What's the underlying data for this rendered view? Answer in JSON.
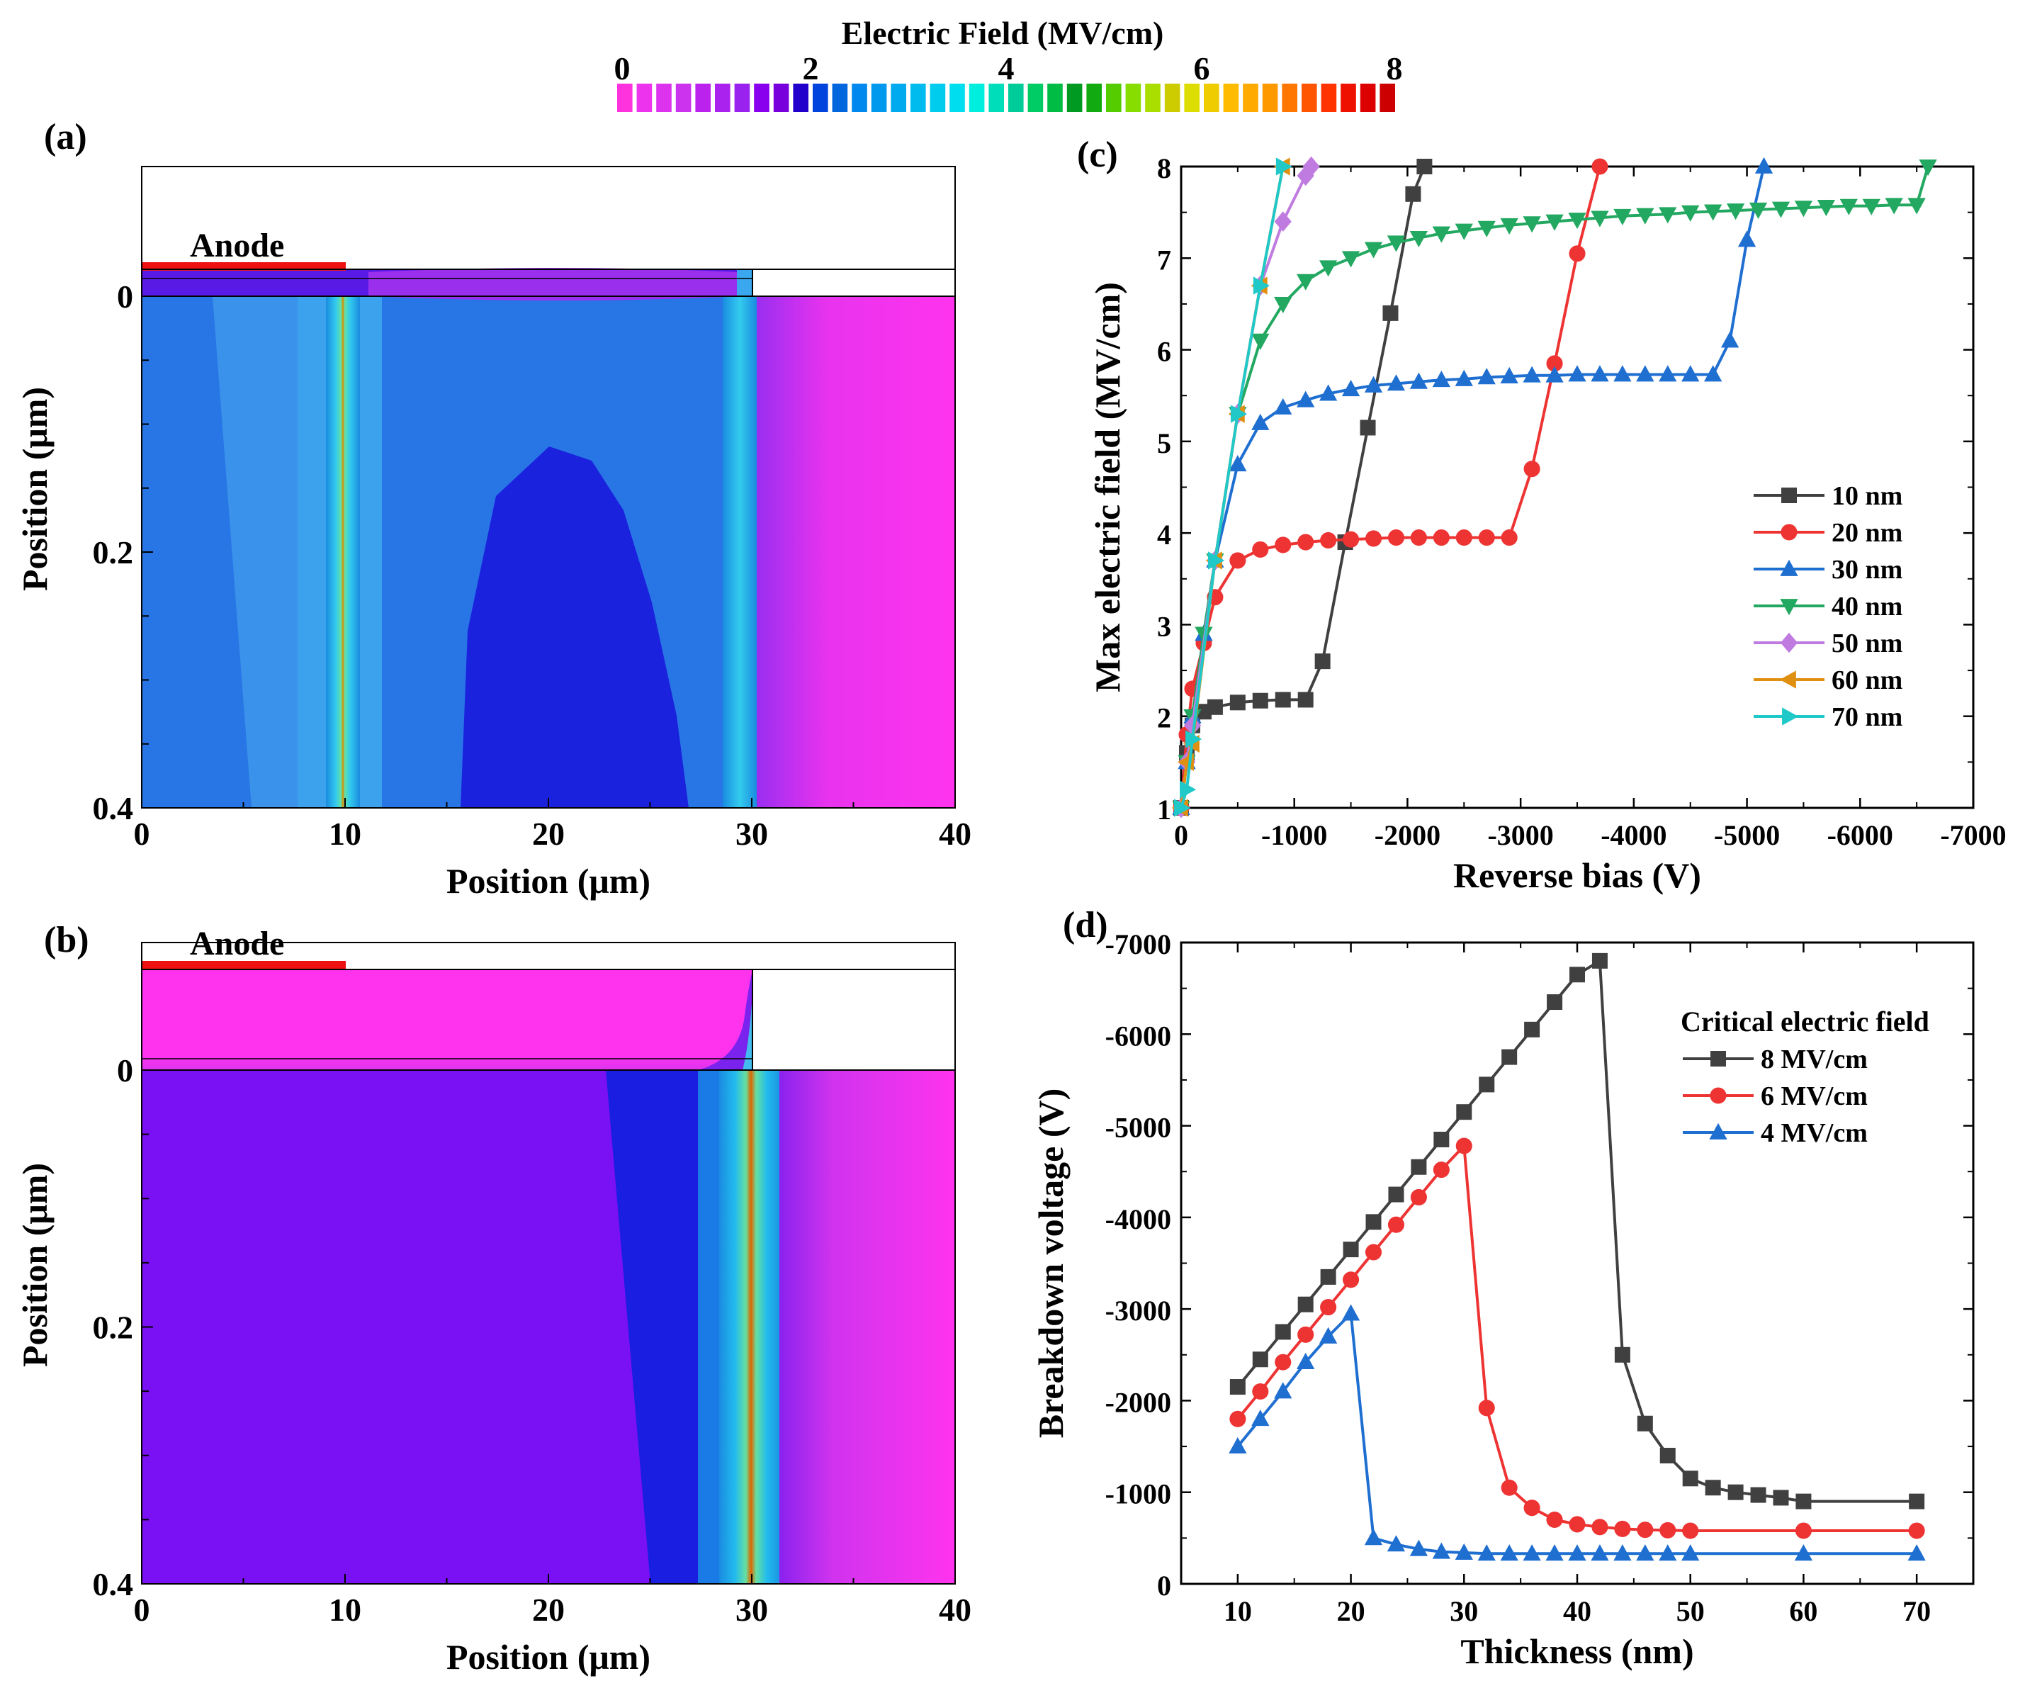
{
  "colorbar": {
    "title": "Electric Field (MV/cm)",
    "ticks": [
      "0",
      "2",
      "4",
      "6",
      "8"
    ],
    "colors": [
      "#ff33dd",
      "#ee33ee",
      "#dd33ee",
      "#cc33ee",
      "#bb22ee",
      "#aa22ee",
      "#9922ee",
      "#8800ee",
      "#7700dd",
      "#2200cc",
      "#0044dd",
      "#0066dd",
      "#0088ee",
      "#0099ee",
      "#00aaee",
      "#00bbee",
      "#00ccee",
      "#00ddee",
      "#00eedd",
      "#00ddbb",
      "#00cc99",
      "#00cc66",
      "#00bb44",
      "#009922",
      "#11aa11",
      "#55cc00",
      "#88dd00",
      "#aadd00",
      "#cccc00",
      "#dddd00",
      "#eecc00",
      "#ffbb00",
      "#ffaa00",
      "#ff9900",
      "#ff7700",
      "#ff5500",
      "#ff3300",
      "#ee1100",
      "#dd0000",
      "#cc0000"
    ]
  },
  "panel_a": {
    "label": "(a)",
    "anode_label": "Anode",
    "xlabel": "Position (μm)",
    "ylabel": "Position (μm)",
    "xticks": [
      "0",
      "10",
      "20",
      "30",
      "40"
    ],
    "yticks": [
      "0",
      "0.2",
      "0.4"
    ]
  },
  "panel_b": {
    "label": "(b)",
    "anode_label": "Anode",
    "xlabel": "Position (μm)",
    "ylabel": "Position (μm)",
    "xticks": [
      "0",
      "10",
      "20",
      "30",
      "40"
    ],
    "yticks": [
      "0",
      "0.2",
      "0.4"
    ]
  },
  "chart_data": [
    {
      "panel": "(c)",
      "type": "line",
      "xlabel": "Reverse bias (V)",
      "ylabel": "Max electric field (MV/cm)",
      "xlim": [
        0,
        -7000
      ],
      "ylim": [
        1,
        8
      ],
      "xticks": [
        0,
        -1000,
        -2000,
        -3000,
        -4000,
        -5000,
        -6000,
        -7000
      ],
      "yticks": [
        1,
        2,
        3,
        4,
        5,
        6,
        7,
        8
      ],
      "legend_position": "bottom-right",
      "series": [
        {
          "name": "10 nm",
          "color": "#404040",
          "marker": "square",
          "x": [
            0,
            -50,
            -100,
            -200,
            -300,
            -500,
            -700,
            -900,
            -1100,
            -1250,
            -1450,
            -1650,
            -1850,
            -2050,
            -2150
          ],
          "y": [
            1.0,
            1.6,
            1.9,
            2.05,
            2.1,
            2.15,
            2.17,
            2.18,
            2.18,
            2.6,
            3.9,
            5.15,
            6.4,
            7.7,
            8.0
          ]
        },
        {
          "name": "20 nm",
          "color": "#ee3333",
          "marker": "circle",
          "x": [
            0,
            -50,
            -100,
            -200,
            -300,
            -500,
            -700,
            -900,
            -1100,
            -1300,
            -1500,
            -1700,
            -1900,
            -2100,
            -2300,
            -2500,
            -2700,
            -2900,
            -3100,
            -3300,
            -3500,
            -3700
          ],
          "y": [
            1.0,
            1.8,
            2.3,
            2.8,
            3.3,
            3.7,
            3.82,
            3.87,
            3.9,
            3.92,
            3.93,
            3.94,
            3.95,
            3.95,
            3.95,
            3.95,
            3.95,
            3.95,
            4.7,
            5.85,
            7.05,
            8.0
          ]
        },
        {
          "name": "30 nm",
          "color": "#1f6fd1",
          "marker": "triangle-up",
          "x": [
            0,
            -50,
            -100,
            -200,
            -300,
            -500,
            -700,
            -900,
            -1100,
            -1300,
            -1500,
            -1700,
            -1900,
            -2100,
            -2300,
            -2500,
            -2700,
            -2900,
            -3100,
            -3300,
            -3500,
            -3700,
            -3900,
            -4100,
            -4300,
            -4500,
            -4700,
            -4850,
            -5000,
            -5150
          ],
          "y": [
            1.0,
            1.5,
            2.0,
            2.9,
            3.7,
            4.75,
            5.2,
            5.37,
            5.45,
            5.52,
            5.57,
            5.61,
            5.63,
            5.65,
            5.67,
            5.68,
            5.7,
            5.71,
            5.72,
            5.72,
            5.73,
            5.73,
            5.73,
            5.73,
            5.73,
            5.73,
            5.73,
            6.1,
            7.2,
            8.0
          ]
        },
        {
          "name": "40 nm",
          "color": "#22a860",
          "marker": "triangle-down",
          "x": [
            0,
            -50,
            -100,
            -200,
            -300,
            -500,
            -700,
            -900,
            -1100,
            -1300,
            -1500,
            -1700,
            -1900,
            -2100,
            -2300,
            -2500,
            -2700,
            -2900,
            -3100,
            -3300,
            -3500,
            -3700,
            -3900,
            -4100,
            -4300,
            -4500,
            -4700,
            -4900,
            -5100,
            -5300,
            -5500,
            -5700,
            -5900,
            -6100,
            -6300,
            -6500,
            -6600
          ],
          "y": [
            1.0,
            1.5,
            2.0,
            2.9,
            3.7,
            5.3,
            6.1,
            6.5,
            6.75,
            6.9,
            7.0,
            7.1,
            7.17,
            7.22,
            7.27,
            7.3,
            7.33,
            7.36,
            7.38,
            7.4,
            7.42,
            7.44,
            7.46,
            7.47,
            7.48,
            7.5,
            7.51,
            7.52,
            7.53,
            7.54,
            7.55,
            7.56,
            7.57,
            7.57,
            7.58,
            7.58,
            8.0
          ]
        },
        {
          "name": "50 nm",
          "color": "#c07be0",
          "marker": "diamond",
          "x": [
            0,
            -50,
            -100,
            -300,
            -500,
            -700,
            -900,
            -1100,
            -1150
          ],
          "y": [
            1.0,
            1.5,
            1.9,
            3.7,
            5.3,
            6.7,
            7.4,
            7.9,
            8.0
          ]
        },
        {
          "name": "60 nm",
          "color": "#e09010",
          "marker": "triangle-left",
          "x": [
            0,
            -50,
            -100,
            -300,
            -500,
            -700,
            -900
          ],
          "y": [
            1.0,
            1.5,
            1.7,
            3.7,
            5.3,
            6.7,
            8.0
          ]
        },
        {
          "name": "70 nm",
          "color": "#20c8c8",
          "marker": "triangle-right",
          "x": [
            0,
            -50,
            -100,
            -300,
            -500,
            -700,
            -900
          ],
          "y": [
            1.0,
            1.2,
            1.75,
            3.7,
            5.3,
            6.7,
            8.0
          ]
        }
      ]
    },
    {
      "panel": "(d)",
      "type": "line",
      "xlabel": "Thickness (nm)",
      "ylabel": "Breakdown voltage (V)",
      "xlim": [
        5,
        75
      ],
      "ylim": [
        0,
        -7000
      ],
      "xticks": [
        10,
        20,
        30,
        40,
        50,
        60,
        70
      ],
      "yticks": [
        0,
        -1000,
        -2000,
        -3000,
        -4000,
        -5000,
        -6000,
        -7000
      ],
      "legend_title": "Critical electric field",
      "legend_position": "top-right",
      "series": [
        {
          "name": "8 MV/cm",
          "color": "#404040",
          "marker": "square",
          "x": [
            10,
            12,
            14,
            16,
            18,
            20,
            22,
            24,
            26,
            28,
            30,
            32,
            34,
            36,
            38,
            40,
            42,
            44,
            46,
            48,
            50,
            52,
            54,
            56,
            58,
            60,
            70
          ],
          "y": [
            -2150,
            -2450,
            -2750,
            -3050,
            -3350,
            -3650,
            -3950,
            -4250,
            -4550,
            -4850,
            -5150,
            -5450,
            -5750,
            -6050,
            -6350,
            -6650,
            -6800,
            -2500,
            -1750,
            -1400,
            -1150,
            -1050,
            -1000,
            -970,
            -940,
            -900,
            -900
          ]
        },
        {
          "name": "6 MV/cm",
          "color": "#ee3333",
          "marker": "circle",
          "x": [
            10,
            12,
            14,
            16,
            18,
            20,
            22,
            24,
            26,
            28,
            30,
            32,
            34,
            36,
            38,
            40,
            42,
            44,
            46,
            48,
            50,
            60,
            70
          ],
          "y": [
            -1800,
            -2100,
            -2420,
            -2720,
            -3020,
            -3320,
            -3620,
            -3920,
            -4220,
            -4520,
            -4780,
            -1920,
            -1050,
            -830,
            -700,
            -650,
            -620,
            -600,
            -590,
            -585,
            -580,
            -580,
            -580
          ]
        },
        {
          "name": "4 MV/cm",
          "color": "#1f6fd1",
          "marker": "triangle-up",
          "x": [
            10,
            12,
            14,
            16,
            18,
            20,
            22,
            24,
            26,
            28,
            30,
            32,
            34,
            36,
            38,
            40,
            42,
            44,
            46,
            48,
            50,
            60,
            70
          ],
          "y": [
            -1500,
            -1800,
            -2100,
            -2420,
            -2700,
            -2950,
            -500,
            -430,
            -380,
            -350,
            -340,
            -330,
            -330,
            -330,
            -330,
            -330,
            -330,
            -330,
            -330,
            -330,
            -330,
            -330,
            -330
          ]
        }
      ]
    }
  ]
}
